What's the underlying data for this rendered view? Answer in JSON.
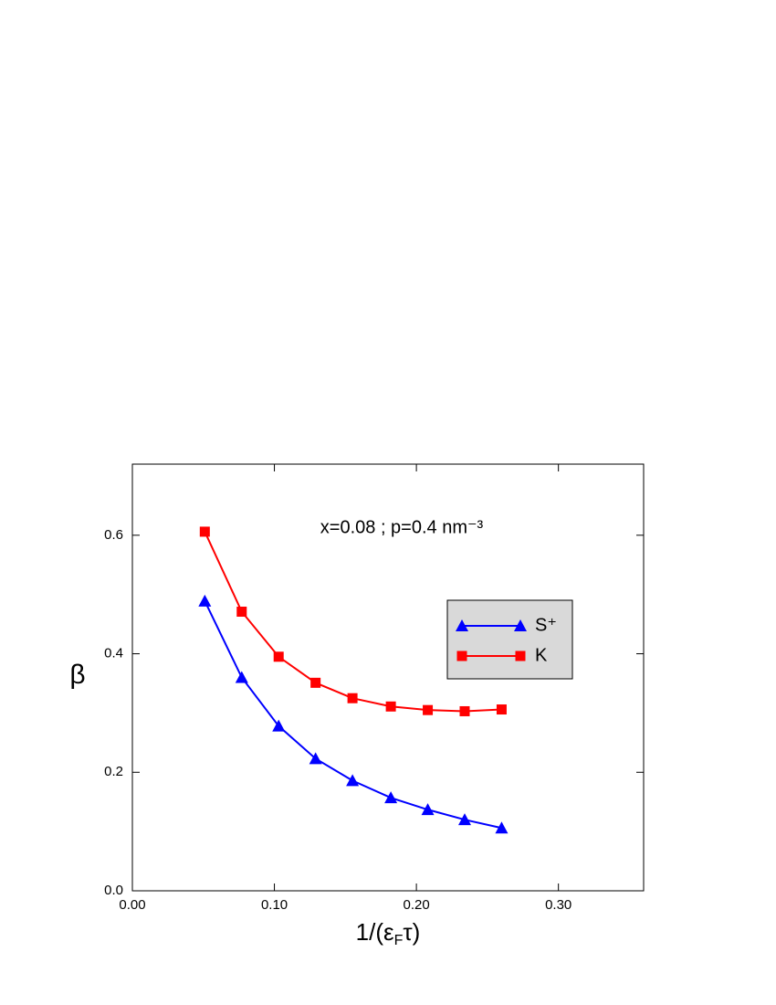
{
  "chart_data": {
    "type": "line",
    "annotation": "x=0.08 ; p=0.4 nm⁻³",
    "xlabel": [
      "1/(ε",
      "F",
      "τ)"
    ],
    "ylabel": "β",
    "x": [
      0.051,
      0.077,
      0.103,
      0.129,
      0.155,
      0.182,
      0.208,
      0.234,
      0.26
    ],
    "series": [
      {
        "name": "S⁺",
        "color": "#0000ff",
        "marker": "triangle",
        "values": [
          0.489,
          0.36,
          0.278,
          0.223,
          0.186,
          0.157,
          0.137,
          0.12,
          0.106
        ]
      },
      {
        "name": "K",
        "color": "#ff0000",
        "marker": "square",
        "values": [
          0.606,
          0.471,
          0.395,
          0.351,
          0.325,
          0.311,
          0.305,
          0.303,
          0.306
        ]
      }
    ],
    "xlim": [
      0,
      0.36
    ],
    "ylim": [
      0,
      0.72
    ],
    "xticks": [
      {
        "value": 0,
        "label": "0.00"
      },
      {
        "value": 0.1,
        "label": "0.10"
      },
      {
        "value": 0.2,
        "label": "0.20"
      },
      {
        "value": 0.3,
        "label": "0.30"
      }
    ],
    "yticks": [
      {
        "value": 0,
        "label": "0.0"
      },
      {
        "value": 0.2,
        "label": "0.2"
      },
      {
        "value": 0.4,
        "label": "0.4"
      },
      {
        "value": 0.6,
        "label": "0.6"
      }
    ],
    "grid": false
  }
}
